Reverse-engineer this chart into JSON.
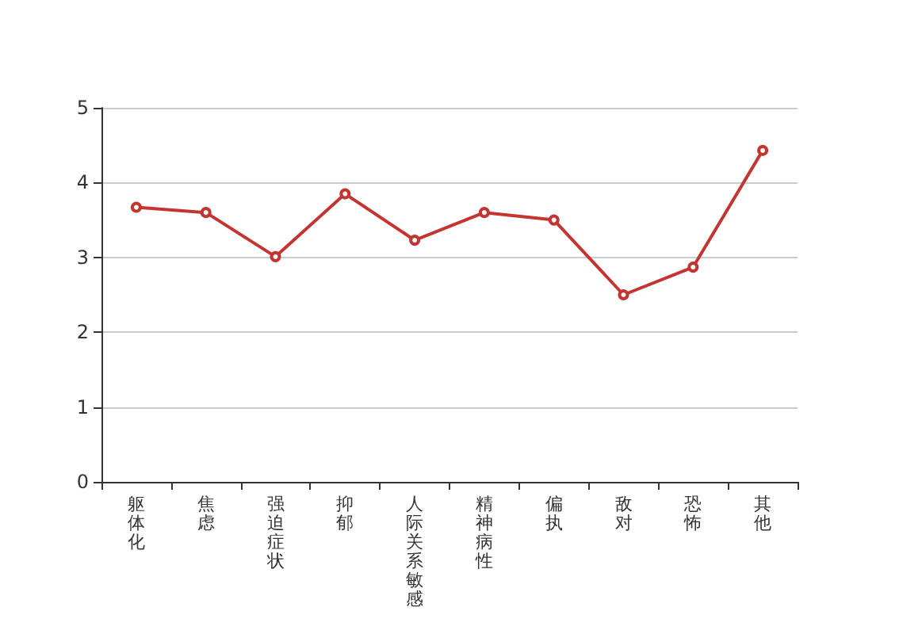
{
  "chart_data": {
    "type": "line",
    "categories": [
      "躯体化",
      "焦虑",
      "强迫症状",
      "抑郁",
      "人际关系敏感",
      "精神病性",
      "偏执",
      "敌对",
      "恐怖",
      "其他"
    ],
    "series": [
      {
        "color": "#c23531",
        "values": [
          3.67,
          3.6,
          3.01,
          3.85,
          3.23,
          3.6,
          3.5,
          2.5,
          2.87,
          4.43
        ]
      }
    ],
    "ylim": [
      0,
      5
    ],
    "yticks": [
      0,
      1,
      2,
      3,
      4,
      5
    ],
    "grid": "y",
    "marker": "circle",
    "line_style": "solid"
  }
}
